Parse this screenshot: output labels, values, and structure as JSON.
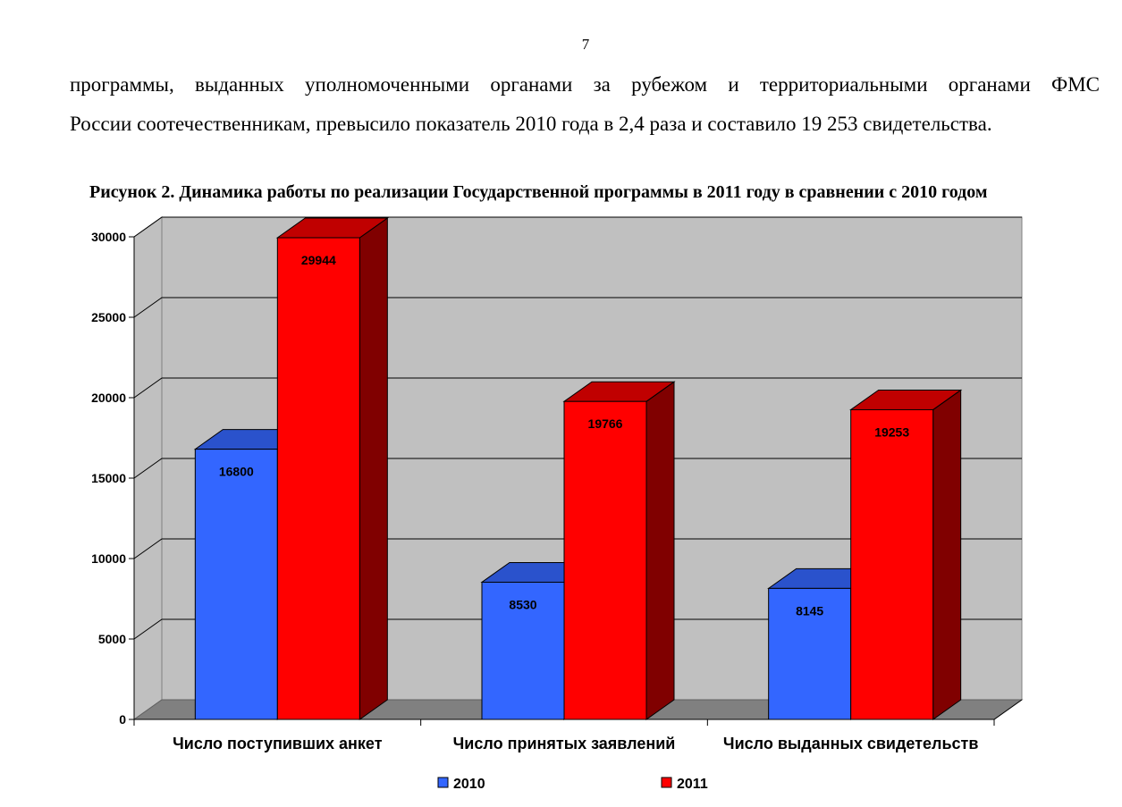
{
  "page": {
    "number": "7",
    "paragraph_line1": "программы, выданных уполномоченными органами за рубежом и территориальными органами ФМС",
    "paragraph_line2": "России соотечественникам, превысило показатель 2010 года в 2,4 раза и составило 19 253 свидетельства.",
    "figure_caption": "Рисунок 2. Динамика работы по реализации Государственной программы в 2011 году в сравнении с 2010 годом"
  },
  "chart_data": {
    "type": "bar",
    "title": "",
    "categories": [
      "Число поступивших анкет",
      "Число принятых заявлений",
      "Число выданных свидетельств"
    ],
    "series": [
      {
        "name": "2010",
        "values": [
          16800,
          8530,
          8145
        ],
        "color": "#3366ff",
        "top_color": "#2a52cc",
        "side_color": "#1f3d99"
      },
      {
        "name": "2011",
        "values": [
          29944,
          19766,
          19253
        ],
        "color": "#ff0000",
        "top_color": "#c00000",
        "side_color": "#800000"
      }
    ],
    "data_labels": true,
    "ylim": [
      0,
      30000
    ],
    "yticks": [
      "0",
      "5000",
      "10000",
      "15000",
      "20000",
      "25000",
      "30000"
    ],
    "wall_color": "#c0c0c0",
    "floor_color": "#808080",
    "grid": true,
    "legend_position": "bottom",
    "style": "3d-clustered-column"
  }
}
